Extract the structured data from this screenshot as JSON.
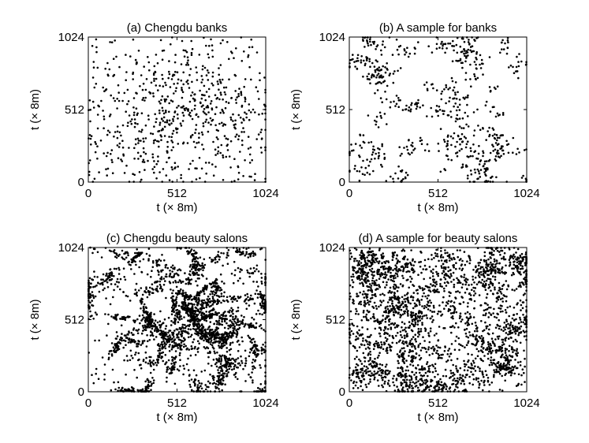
{
  "chart_data": [
    {
      "id": "a",
      "type": "scatter",
      "title": "(a) Chengdu banks",
      "xlabel": "t (× 8m)",
      "ylabel": "t (× 8m)",
      "xlim": [
        0,
        1024
      ],
      "ylim": [
        0,
        1024
      ],
      "xticks": [
        "0",
        "512",
        "1024"
      ],
      "yticks": [
        "0",
        "512",
        "1024"
      ],
      "tick_values": [
        0,
        512,
        1024
      ],
      "grid": false,
      "marker_color": "#000000",
      "points": {
        "count": 700,
        "seed": 11,
        "pattern": "banks-real"
      }
    },
    {
      "id": "b",
      "type": "scatter",
      "title": "(b) A sample for banks",
      "xlabel": "t (× 8m)",
      "ylabel": "t (× 8m)",
      "xlim": [
        0,
        1024
      ],
      "ylim": [
        0,
        1024
      ],
      "xticks": [
        "0",
        "512",
        "1024"
      ],
      "yticks": [
        "0",
        "512",
        "1024"
      ],
      "tick_values": [
        0,
        512,
        1024
      ],
      "grid": false,
      "marker_color": "#000000",
      "points": {
        "count": 680,
        "seed": 23,
        "pattern": "banks-sample"
      }
    },
    {
      "id": "c",
      "type": "scatter",
      "title": "(c) Chengdu beauty salons",
      "xlabel": "t (× 8m)",
      "ylabel": "t (× 8m)",
      "xlim": [
        0,
        1024
      ],
      "ylim": [
        0,
        1024
      ],
      "xticks": [
        "0",
        "512",
        "1024"
      ],
      "yticks": [
        "0",
        "512",
        "1024"
      ],
      "tick_values": [
        0,
        512,
        1024
      ],
      "grid": false,
      "marker_color": "#000000",
      "points": {
        "count": 2600,
        "seed": 37,
        "pattern": "salons-real"
      }
    },
    {
      "id": "d",
      "type": "scatter",
      "title": "(d) A sample for beauty salons",
      "xlabel": "t (× 8m)",
      "ylabel": "t (× 8m)",
      "xlim": [
        0,
        1024
      ],
      "ylim": [
        0,
        1024
      ],
      "xticks": [
        "0",
        "512",
        "1024"
      ],
      "yticks": [
        "0",
        "512",
        "1024"
      ],
      "tick_values": [
        0,
        512,
        1024
      ],
      "grid": false,
      "marker_color": "#000000",
      "points": {
        "count": 2500,
        "seed": 53,
        "pattern": "salons-sample"
      }
    }
  ]
}
